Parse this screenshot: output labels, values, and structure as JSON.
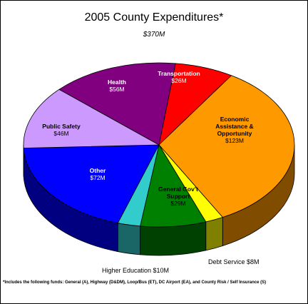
{
  "title": "2005 County Expenditures*",
  "subtitle": "$370M",
  "footnote": "*Includes the following funds: General (A), Highway (D&DM), Loop/Bus (ET), DC Airport (EA), and County Risk / Self Insurance (S)",
  "chart_data": {
    "type": "pie",
    "title": "2005 County Expenditures*",
    "subtitle": "$370M",
    "total": 370,
    "unit": "$M",
    "three_d": true,
    "slices": [
      {
        "label": "Transportation",
        "value_label": "$26M",
        "value": 26,
        "color": "#ff0000"
      },
      {
        "label": "Economic Assistance & Opportunity",
        "value_label": "$123M",
        "value": 123,
        "color": "#ff9900"
      },
      {
        "label": "Debt Service",
        "value_label": "$8M",
        "value": 8,
        "color": "#ffff00"
      },
      {
        "label": "General Gov't Support",
        "value_label": "$29M",
        "value": 29,
        "color": "#008000"
      },
      {
        "label": "Higher Education",
        "value_label": "$10M",
        "value": 10,
        "color": "#33cccc"
      },
      {
        "label": "Other",
        "value_label": "$72M",
        "value": 72,
        "color": "#0000ff"
      },
      {
        "label": "Public Safety",
        "value_label": "$46M",
        "value": 46,
        "color": "#cc99ff"
      },
      {
        "label": "Health",
        "value_label": "$56M",
        "value": 56,
        "color": "#800080"
      }
    ]
  }
}
